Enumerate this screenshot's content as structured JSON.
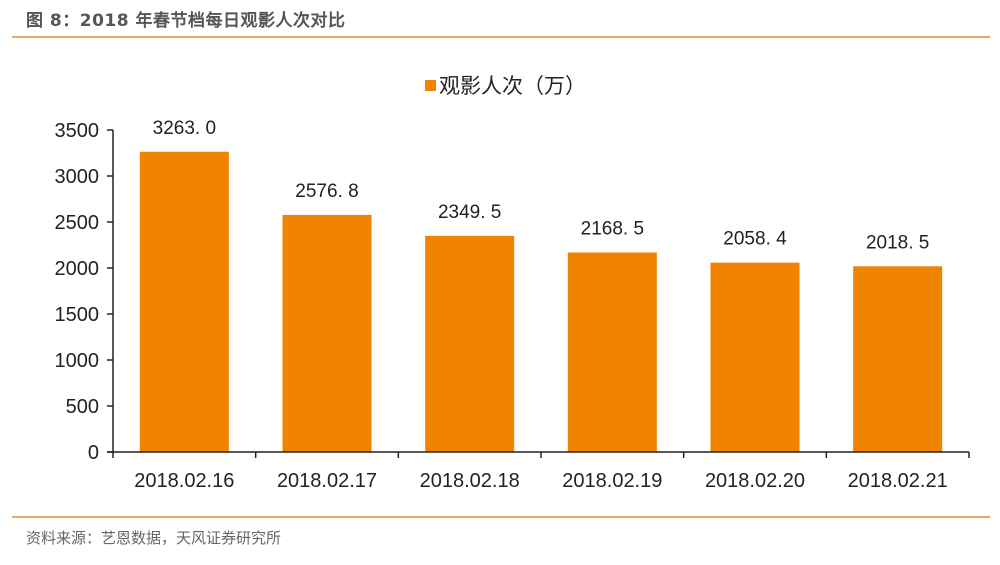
{
  "header": {
    "title": "图 8：2018 年春节档每日观影人次对比"
  },
  "footer": {
    "source": "资料来源：艺恩数据，天风证券研究所"
  },
  "legend": {
    "label": "观影人次（万）",
    "color": "#f08300"
  },
  "chart_data": {
    "type": "bar",
    "title": "图 8：2018 年春节档每日观影人次对比",
    "categories": [
      "2018.02.16",
      "2018.02.17",
      "2018.02.18",
      "2018.02.19",
      "2018.02.20",
      "2018.02.21"
    ],
    "series": [
      {
        "name": "观影人次（万）",
        "values": [
          3263.0,
          2576.8,
          2349.5,
          2168.5,
          2058.4,
          2018.5
        ],
        "labels": [
          "3263. 0",
          "2576. 8",
          "2349. 5",
          "2168. 5",
          "2058. 4",
          "2018. 5"
        ],
        "color": "#f08300"
      }
    ],
    "xlabel": "",
    "ylabel": "",
    "ylim": [
      0,
      3500
    ],
    "yticks": [
      0,
      500,
      1000,
      1500,
      2000,
      2500,
      3000,
      3500
    ],
    "grid": false,
    "legend_position": "top"
  }
}
